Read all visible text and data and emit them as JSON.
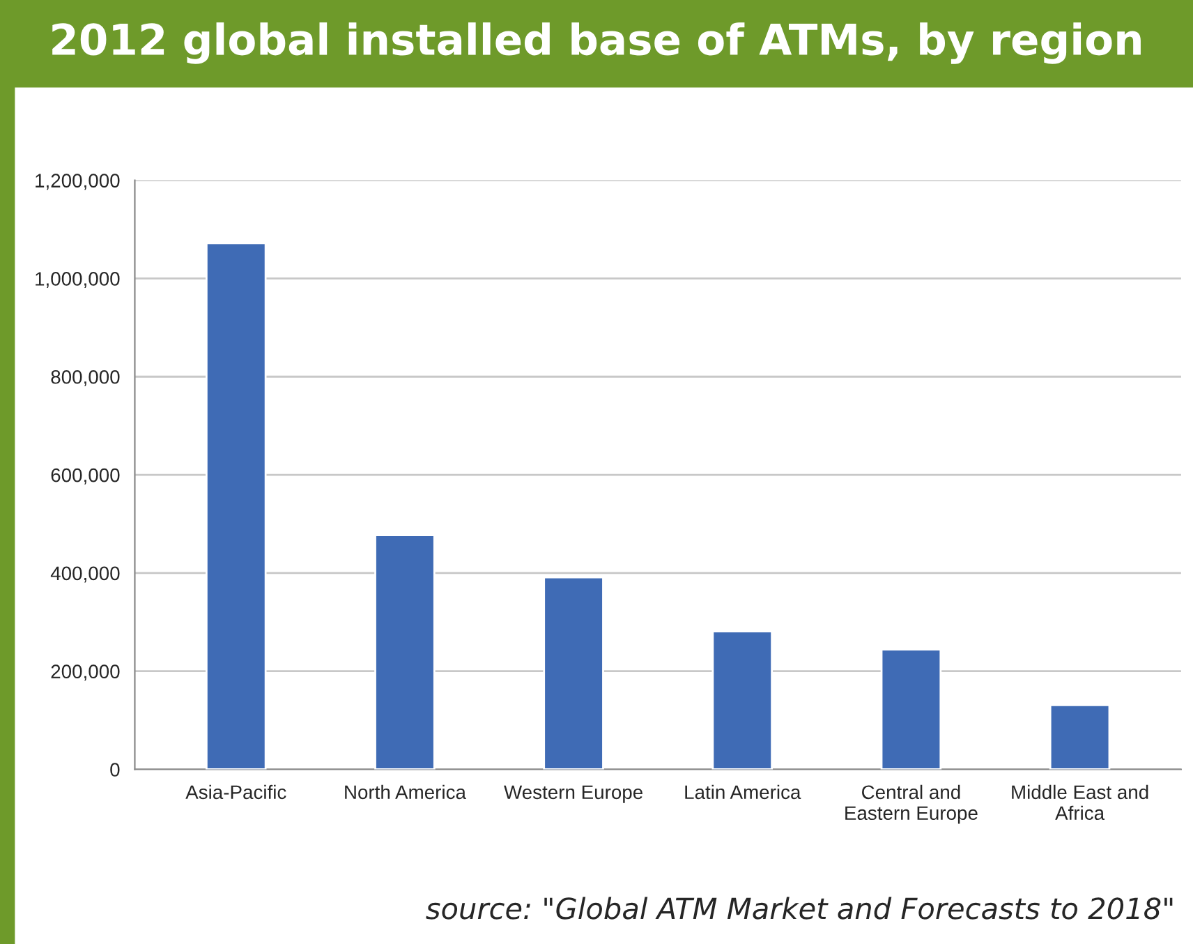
{
  "chart_data": {
    "type": "bar",
    "title": "2012 global installed base of ATMs, by region",
    "categories": [
      "Asia-Pacific",
      "North America",
      "Western Europe",
      "Latin America",
      "Central and\nEastern Europe",
      "Middle East and\nAfrica"
    ],
    "values": [
      1072000,
      477000,
      391000,
      281000,
      244000,
      131000
    ],
    "color": "#3f6bb5",
    "ylim": [
      0,
      1200000
    ],
    "yticks": [
      {
        "value": 0,
        "label": "0"
      },
      {
        "value": 200000,
        "label": "200,000"
      },
      {
        "value": 400000,
        "label": "400,000"
      },
      {
        "value": 600000,
        "label": "600,000"
      },
      {
        "value": 800000,
        "label": "800,000"
      },
      {
        "value": 1000000,
        "label": "1,000,000"
      },
      {
        "value": 1200000,
        "label": "1,200,000"
      }
    ],
    "grid": "y",
    "annotations": [
      "source: \"Global ATM Market and Forecasts to 2018\""
    ]
  }
}
